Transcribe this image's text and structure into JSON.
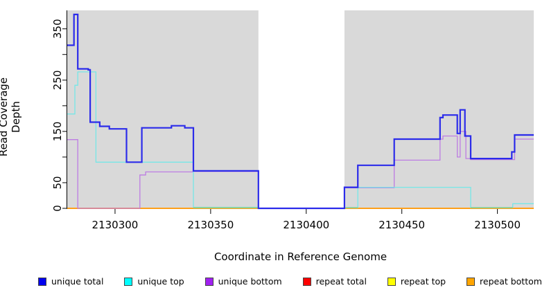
{
  "labels": {
    "x_title": "Coordinate in Reference Genome",
    "y_title": "Read Coverage Depth"
  },
  "chart_data": {
    "type": "line",
    "step": true,
    "title": "",
    "xlabel": "Coordinate in Reference Genome",
    "ylabel": "Read Coverage Depth",
    "x_axis": {
      "range": [
        2130275,
        2130519
      ],
      "ticks": [
        2130300,
        2130350,
        2130400,
        2130450,
        2130500
      ],
      "tick_labels": [
        "2130300",
        "2130350",
        "2130400",
        "2130450",
        "2130500"
      ]
    },
    "y_axis": {
      "range": [
        0,
        386
      ],
      "ticks": [
        0,
        50,
        100,
        150,
        200,
        250,
        300,
        350
      ],
      "labeled_ticks": [
        0,
        50,
        150,
        250,
        350
      ]
    },
    "panel_bg": "#d9d9d9",
    "gap_region": {
      "x_start": 2130375,
      "x_end": 2130420,
      "color": "#ffffff"
    },
    "series": [
      {
        "name": "repeat total",
        "slug": "repeat-total",
        "line_color": "#dd2222",
        "line_width": 1,
        "segments": [
          [
            [
              2130275,
              0
            ],
            [
              2130375,
              0
            ]
          ],
          [
            [
              2130420,
              0
            ],
            [
              2130519,
              0
            ]
          ]
        ]
      },
      {
        "name": "repeat top",
        "slug": "repeat-top",
        "line_color": "#f5e642",
        "line_width": 1,
        "segments": [
          [
            [
              2130275,
              0
            ],
            [
              2130375,
              0
            ]
          ],
          [
            [
              2130420,
              0
            ],
            [
              2130519,
              0
            ]
          ]
        ]
      },
      {
        "name": "repeat bottom",
        "slug": "repeat-bottom",
        "line_color": "#ff9f1a",
        "line_width": 2,
        "segments": [
          [
            [
              2130275,
              0
            ],
            [
              2130375,
              0
            ]
          ],
          [
            [
              2130420,
              0
            ],
            [
              2130519,
              0
            ]
          ]
        ]
      },
      {
        "name": "unique bottom",
        "slug": "unique-bottom",
        "line_color": "#bd7ce3",
        "line_width": 1.3,
        "segments": [
          [
            [
              2130275,
              134
            ],
            [
              2130280.5,
              0
            ],
            [
              2130313,
              65
            ],
            [
              2130316,
              71
            ],
            [
              2130341,
              72
            ],
            [
              2130375,
              0
            ],
            [
              2130420,
              40
            ],
            [
              2130446,
              94
            ],
            [
              2130470,
              135
            ],
            [
              2130471.5,
              141
            ],
            [
              2130479,
              100
            ],
            [
              2130480.5,
              150
            ],
            [
              2130483.5,
              97
            ],
            [
              2130486,
              95
            ],
            [
              2130509,
              135
            ],
            [
              2130519,
              135
            ]
          ]
        ]
      },
      {
        "name": "unique top",
        "slug": "unique-top",
        "line_color": "#76e7e7",
        "line_width": 1.3,
        "segments": [
          [
            [
              2130275,
              184
            ],
            [
              2130279,
              240
            ],
            [
              2130280.5,
              266
            ],
            [
              2130290,
              90
            ],
            [
              2130341,
              2
            ],
            [
              2130375,
              0
            ],
            [
              2130420,
              1.5
            ],
            [
              2130427,
              41
            ],
            [
              2130486,
              1.5
            ],
            [
              2130508,
              9
            ],
            [
              2130519,
              9
            ]
          ]
        ]
      },
      {
        "name": "unique total",
        "slug": "unique-total",
        "line_color": "#2b2bea",
        "line_width": 2.2,
        "segments": [
          [
            [
              2130275,
              318
            ],
            [
              2130278.5,
              378
            ],
            [
              2130280.5,
              272
            ],
            [
              2130286,
              270
            ],
            [
              2130287,
              168
            ],
            [
              2130292,
              160
            ],
            [
              2130297,
              155
            ],
            [
              2130306,
              90
            ],
            [
              2130314,
              157
            ],
            [
              2130329.5,
              161
            ],
            [
              2130336.5,
              157
            ],
            [
              2130341,
              73
            ],
            [
              2130375,
              0
            ],
            [
              2130420,
              41
            ],
            [
              2130427,
              84
            ],
            [
              2130446,
              135
            ],
            [
              2130470,
              177
            ],
            [
              2130471.5,
              182
            ],
            [
              2130479,
              146
            ],
            [
              2130480.5,
              192
            ],
            [
              2130483,
              141
            ],
            [
              2130486,
              97
            ],
            [
              2130507.5,
              110
            ],
            [
              2130509,
              143
            ],
            [
              2130519,
              143
            ]
          ]
        ]
      }
    ],
    "blend_segments": [
      {
        "x_start": 2130341,
        "x_end": 2130375,
        "level": 1.2,
        "color": "#8fce8f"
      },
      {
        "x_start": 2130420,
        "x_end": 2130427,
        "level": 1.2,
        "color": "#8fce8f"
      },
      {
        "x_start": 2130486,
        "x_end": 2130508,
        "level": 1.2,
        "color": "#8fce8f"
      }
    ]
  },
  "legend": {
    "items": [
      {
        "label": "unique total",
        "color": "#0000ee"
      },
      {
        "label": "unique top",
        "color": "#00ffff"
      },
      {
        "label": "unique bottom",
        "color": "#a020f0"
      },
      {
        "label": "repeat total",
        "color": "#ff0000"
      },
      {
        "label": "repeat top",
        "color": "#ffff00"
      },
      {
        "label": "repeat bottom",
        "color": "#ffa500"
      }
    ]
  }
}
